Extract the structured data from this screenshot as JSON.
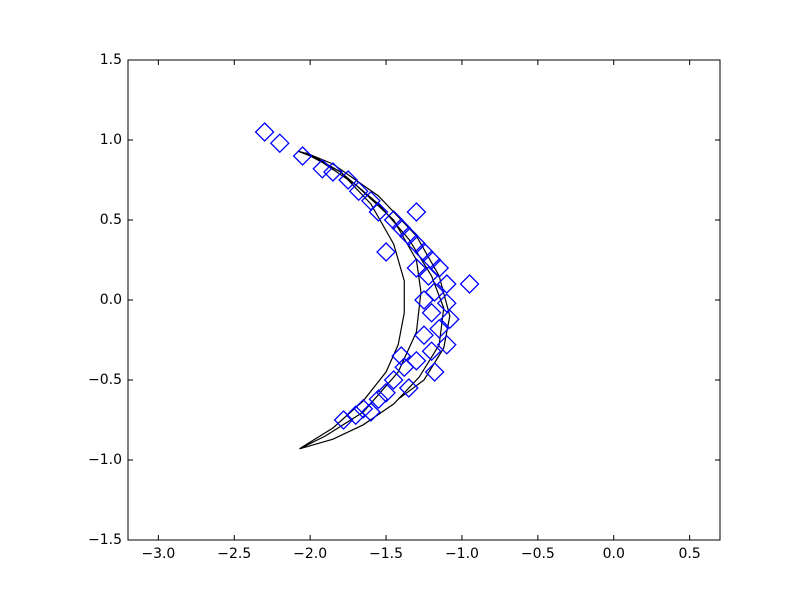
{
  "chart_data": {
    "type": "scatter",
    "xlim": [
      -3.2,
      0.7
    ],
    "ylim": [
      -1.5,
      1.5
    ],
    "xticks": [
      {
        "value": -3.0,
        "label": "−3.0"
      },
      {
        "value": -2.5,
        "label": "−2.5"
      },
      {
        "value": -2.0,
        "label": "−2.0"
      },
      {
        "value": -1.5,
        "label": "−1.5"
      },
      {
        "value": -1.0,
        "label": "−1.0"
      },
      {
        "value": -0.5,
        "label": "−0.5"
      },
      {
        "value": 0,
        "label": "0.0"
      },
      0.5
    ],
    "yticks": [
      {
        "value": -1.5,
        "label": "−1.5"
      },
      {
        "value": -1.0,
        "label": "−1.0"
      },
      {
        "value": -0.5,
        "label": "−0.5"
      },
      {
        "value": 0,
        "label": "0.0"
      },
      0.5,
      {
        "value": 1.0,
        "label": "1.0"
      },
      1.5
    ],
    "series": [
      {
        "type": "line",
        "color": "#000000",
        "x": [
          -2.07,
          -2.02,
          -1.85,
          -1.65,
          -1.5,
          -1.42,
          -1.38,
          -1.38,
          -1.45,
          -1.6,
          -1.8,
          -2.0,
          -2.08,
          -2.0,
          -1.8,
          -1.55,
          -1.35,
          -1.2,
          -1.12,
          -1.15,
          -1.28,
          -1.45,
          -1.65,
          -1.85,
          -2.07,
          -1.9,
          -1.65,
          -1.42,
          -1.3,
          -1.27,
          -1.3,
          -1.45,
          -1.7,
          -1.95,
          -2.03,
          -1.85,
          -1.55,
          -1.3,
          -1.15,
          -1.08,
          -1.12,
          -1.25,
          -1.42
        ],
        "y": [
          -0.93,
          -0.9,
          -0.8,
          -0.63,
          -0.45,
          -0.28,
          -0.08,
          0.12,
          0.35,
          0.6,
          0.8,
          0.91,
          0.93,
          0.9,
          0.8,
          0.6,
          0.38,
          0.15,
          -0.05,
          -0.28,
          -0.48,
          -0.65,
          -0.78,
          -0.87,
          -0.93,
          -0.85,
          -0.7,
          -0.45,
          -0.2,
          0.05,
          0.25,
          0.5,
          0.72,
          0.88,
          0.92,
          0.85,
          0.65,
          0.4,
          0.15,
          -0.1,
          -0.3,
          -0.5,
          -0.62
        ]
      },
      {
        "type": "scatter",
        "marker": "diamond",
        "color": "#0000ff",
        "x": [
          -2.3,
          -2.2,
          -2.05,
          -1.92,
          -1.85,
          -1.75,
          -1.68,
          -1.6,
          -1.55,
          -1.45,
          -1.4,
          -1.35,
          -1.3,
          -1.25,
          -1.2,
          -1.15,
          -1.3,
          -1.22,
          -1.1,
          -0.95,
          -1.18,
          -1.25,
          -1.1,
          -1.2,
          -1.08,
          -1.15,
          -1.25,
          -1.1,
          -1.2,
          -1.3,
          -1.38,
          -1.45,
          -1.35,
          -1.5,
          -1.55,
          -1.65,
          -1.7,
          -1.78,
          -1.6,
          -1.4,
          -1.3,
          -1.5,
          -1.18
        ],
        "y": [
          1.05,
          0.98,
          0.9,
          0.82,
          0.8,
          0.75,
          0.68,
          0.62,
          0.55,
          0.5,
          0.45,
          0.4,
          0.35,
          0.3,
          0.25,
          0.2,
          0.2,
          0.15,
          0.1,
          0.1,
          0.05,
          0.0,
          -0.02,
          -0.08,
          -0.12,
          -0.18,
          -0.22,
          -0.28,
          -0.32,
          -0.38,
          -0.42,
          -0.5,
          -0.55,
          -0.58,
          -0.62,
          -0.68,
          -0.72,
          -0.75,
          -0.7,
          -0.35,
          0.55,
          0.3,
          -0.45
        ]
      }
    ]
  }
}
